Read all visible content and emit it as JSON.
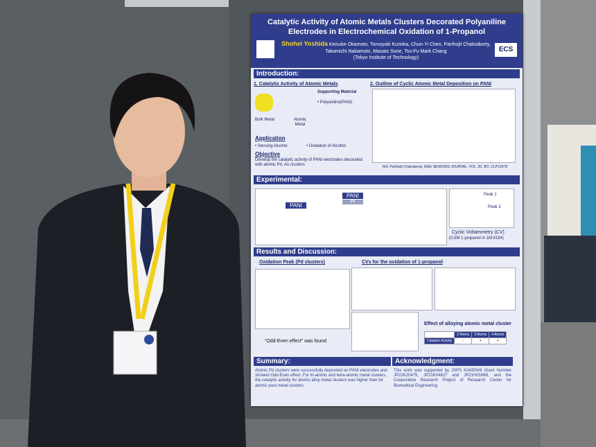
{
  "poster": {
    "title": "Catalytic Activity of Atomic Metals Clusters Decorated Polyaniline Electrodes in Electrochemical Oxidation of 1-Propanol",
    "presenter": "Shohei Yoshida",
    "coauthors": "Keisuke Okamoto, Tomoyuki Kurioka, Chun-Yi Chen, Parthojit Chakraborty, Takamichi Nakamoto, Masato Sone, Tso-Fu Mark Chang",
    "affiliation": "(Tokyo Institute of Technology)",
    "logo": "ECS",
    "introduction": {
      "heading": "Introduction:",
      "sub1": "1. Catalytic Activity of Atomic Metals",
      "sub2": "2. Outline of Cyclic Atomic Metal Deposition on PANI",
      "supporting": "Supporting Material",
      "pani": "• Polyaniline(PANI)",
      "bulk": "Bulk Metal",
      "atomic": "Atomic Metal",
      "application": "Application",
      "app1": "• Sensing Alcohol",
      "app2": "• Oxidation of Alcohol",
      "objective": "Objective",
      "objective_text": "Develop the catalytic activity of PANI electrodes decorated with atomic Pd, Au clusters",
      "reference": "Ref. Parthojit Chakraborty, IEEE SENSORS JOURNAL, VOL. 20, NO. 21,P12479"
    },
    "experimental": {
      "heading": "Experimental:",
      "pani": "PANI",
      "pt": "Pt",
      "peak1": "Peak 1",
      "peak2": "Peak 2",
      "cv": "Cyclic Voltammetry (CV)",
      "cv_cond": "(0.5M 1-propanol in 1M KOH)"
    },
    "results": {
      "heading": "Results and Discussion:",
      "sub1": "Oxidation Peak (Pd clusters)",
      "sub2": "CVs for the oxidation of 1-propanol",
      "odd_even": "“Odd-Even effect” was found",
      "table_title": "Effect of alloying atomic metal cluster",
      "table": {
        "header": [
          "2 Atoms",
          "3 Atoms",
          "4 Atoms"
        ],
        "row": [
          "Catalytic Activity",
          "-",
          "+",
          "+"
        ]
      }
    },
    "summary": {
      "heading": "Summary:",
      "text": "Atomic Pd clusters were successfully deposited on PANI electrodes and showed Odd-Even effect. For tri-atomic and tetra-atomic metal clusters, the catalytic activity for atomic alloy metal clusters was higher than for atomic pure metal clusters"
    },
    "acknowledgment": {
      "heading": "Acknowledgment:",
      "text": "This work was supported by JSPS KAKENHI Grant Number JP22K20475, JP21K04827 and JP21H01668, and the Cooperative Research Project of Research Center for Biomedical Engineering"
    }
  }
}
